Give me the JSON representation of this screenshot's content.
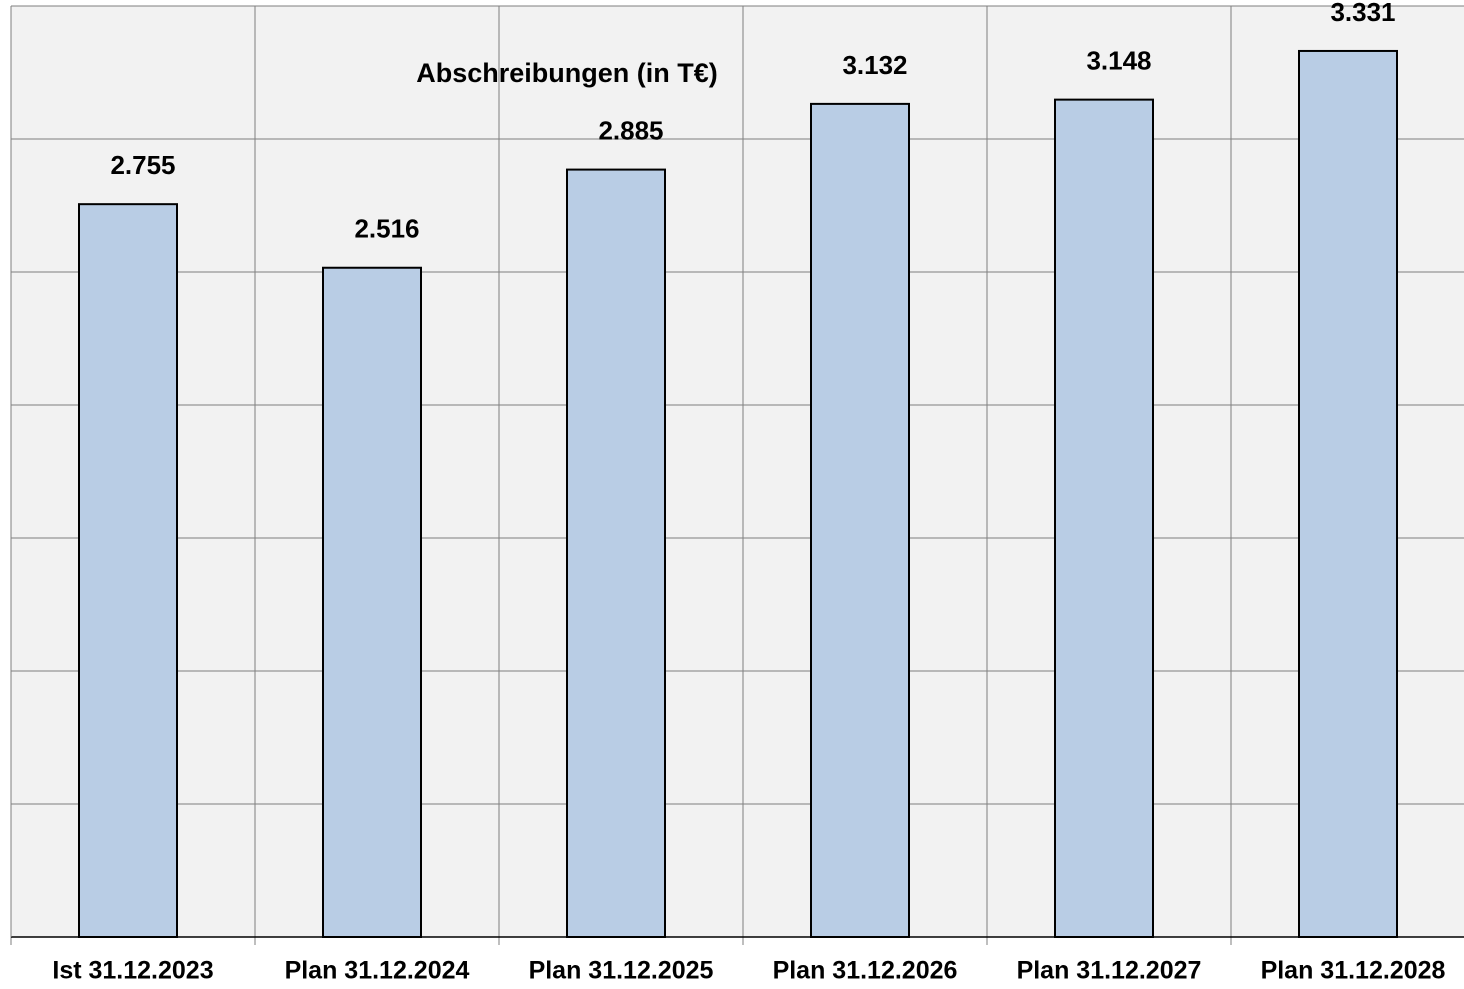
{
  "chart_data": {
    "type": "bar",
    "title": "Abschreibungen (in T€)",
    "categories": [
      "Ist 31.12.2023",
      "Plan 31.12.2024",
      "Plan 31.12.2025",
      "Plan 31.12.2026",
      "Plan 31.12.2027",
      "Plan 31.12.2028"
    ],
    "values": [
      2755,
      2516,
      2885,
      3132,
      3148,
      3331
    ],
    "value_labels": [
      "2.755",
      "2.516",
      "2.885",
      "3.132",
      "3.148",
      "3.331"
    ],
    "color": "#b9cde5",
    "ylim": [
      0,
      3500
    ],
    "yticks": [
      0,
      500,
      1000,
      1500,
      2000,
      2500,
      3000,
      3500
    ],
    "grid": true
  }
}
